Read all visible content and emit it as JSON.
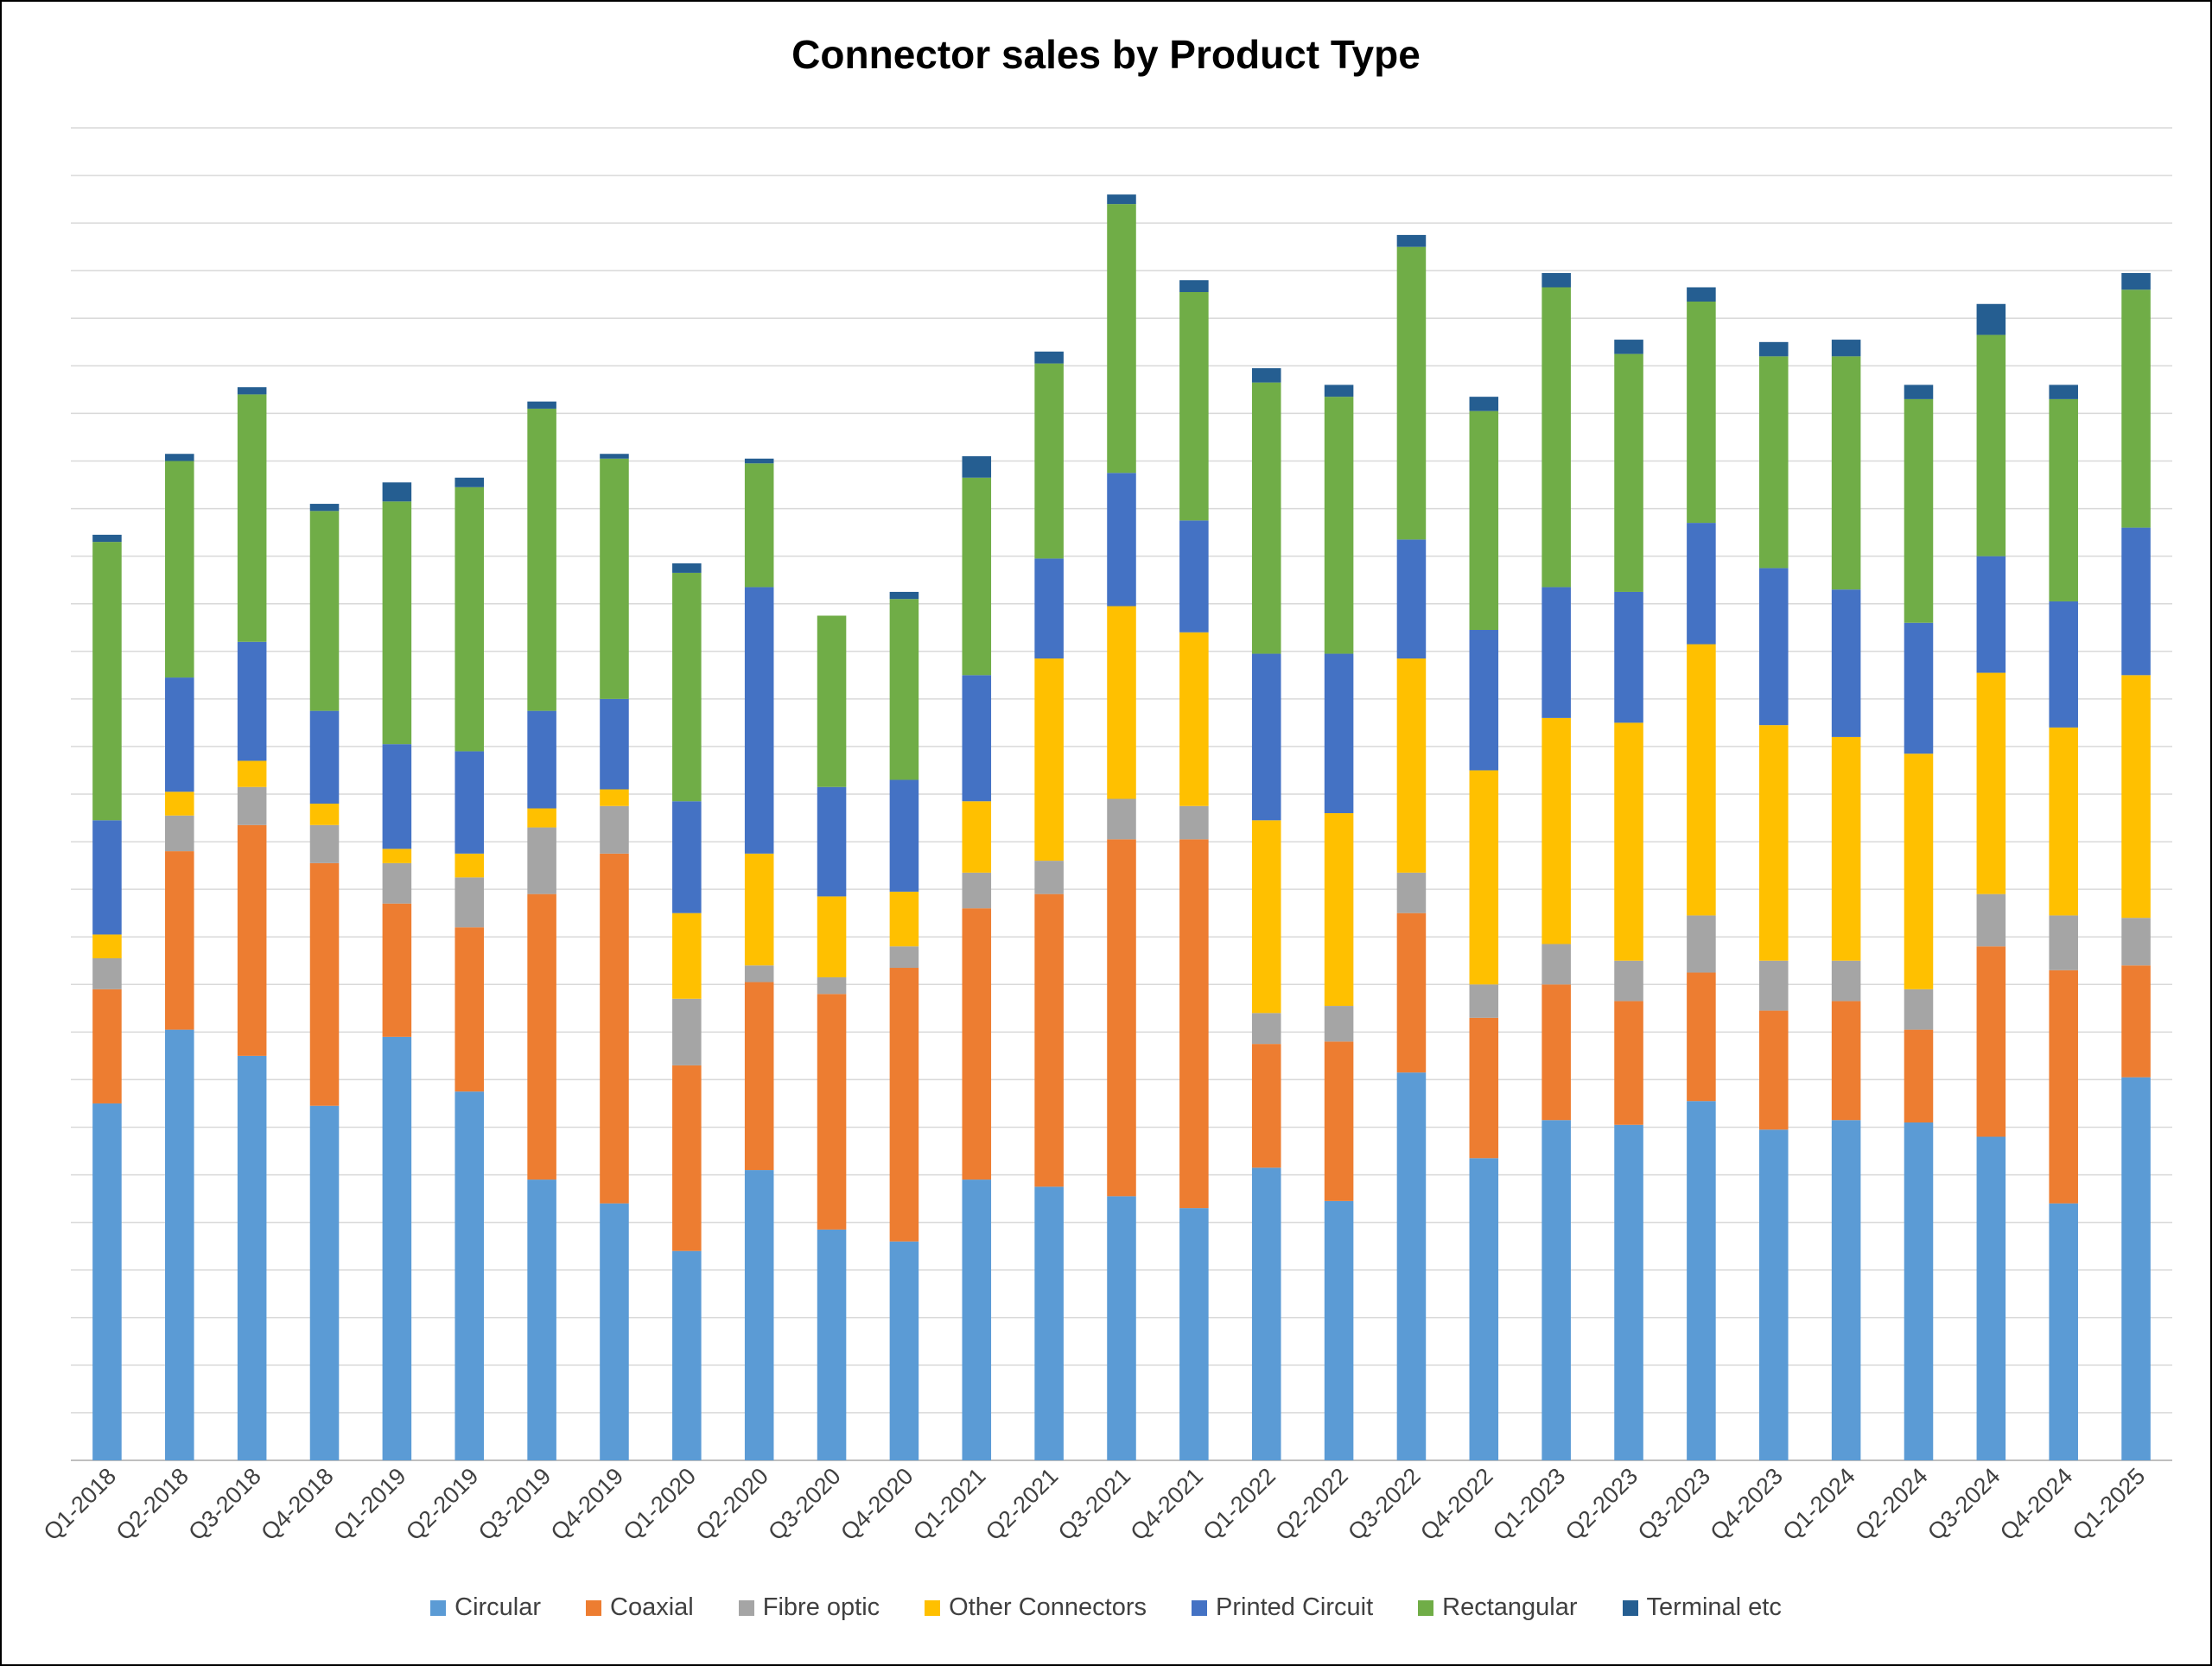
{
  "chart_data": {
    "type": "bar",
    "stacked": true,
    "title": "Connector sales by Product Type",
    "xlabel": "",
    "ylabel": "",
    "ylim": [
      0,
      28
    ],
    "grid": true,
    "legend_position": "bottom",
    "categories": [
      "Q1-2018",
      "Q2-2018",
      "Q3-2018",
      "Q4-2018",
      "Q1-2019",
      "Q2-2019",
      "Q3-2019",
      "Q4-2019",
      "Q1-2020",
      "Q2-2020",
      "Q3-2020",
      "Q4-2020",
      "Q1-2021",
      "Q2-2021",
      "Q3-2021",
      "Q4-2021",
      "Q1-2022",
      "Q2-2022",
      "Q3-2022",
      "Q4-2022",
      "Q1-2023",
      "Q2-2023",
      "Q3-2023",
      "Q4-2023",
      "Q1-2024",
      "Q2-2024",
      "Q3-2024",
      "Q4-2024",
      "Q1-2025"
    ],
    "series": [
      {
        "name": "Circular",
        "color": "#5B9BD5",
        "values": [
          7.5,
          9.05,
          8.5,
          7.45,
          8.9,
          7.75,
          5.9,
          5.4,
          4.4,
          6.1,
          4.85,
          4.6,
          5.9,
          5.75,
          5.55,
          5.3,
          6.15,
          5.45,
          8.15,
          6.35,
          7.15,
          7.05,
          7.55,
          6.95,
          7.15,
          7.1,
          6.8,
          5.4,
          8.05
        ]
      },
      {
        "name": "Coaxial",
        "color": "#ED7D31",
        "values": [
          2.4,
          3.75,
          4.85,
          5.1,
          2.8,
          3.45,
          6.0,
          7.35,
          3.9,
          3.95,
          4.95,
          5.75,
          5.7,
          6.15,
          7.5,
          7.75,
          2.6,
          3.35,
          3.35,
          2.95,
          2.85,
          2.6,
          2.7,
          2.5,
          2.5,
          1.95,
          4.0,
          4.9,
          2.35
        ]
      },
      {
        "name": "Fibre optic",
        "color": "#A5A5A5",
        "values": [
          0.65,
          0.75,
          0.8,
          0.8,
          0.85,
          1.05,
          1.4,
          1.0,
          1.4,
          0.35,
          0.35,
          0.45,
          0.75,
          0.7,
          0.85,
          0.7,
          0.65,
          0.75,
          0.85,
          0.7,
          0.85,
          0.85,
          1.2,
          1.05,
          0.85,
          0.85,
          1.1,
          1.15,
          1.0
        ]
      },
      {
        "name": "Other Connectors",
        "color": "#FFC000",
        "values": [
          0.5,
          0.5,
          0.55,
          0.45,
          0.3,
          0.5,
          0.4,
          0.35,
          1.8,
          2.35,
          1.7,
          1.15,
          1.5,
          4.25,
          4.05,
          3.65,
          4.05,
          4.05,
          4.5,
          4.5,
          4.75,
          5.0,
          5.7,
          4.95,
          4.7,
          4.95,
          4.65,
          3.95,
          5.1
        ]
      },
      {
        "name": "Printed Circuit",
        "color": "#4472C4",
        "values": [
          2.4,
          2.4,
          2.5,
          1.95,
          2.2,
          2.15,
          2.05,
          1.9,
          2.35,
          5.6,
          2.3,
          2.35,
          2.65,
          2.1,
          2.8,
          2.35,
          3.5,
          3.35,
          2.5,
          2.95,
          2.75,
          2.75,
          2.55,
          3.3,
          3.1,
          2.75,
          2.45,
          2.65,
          3.1
        ]
      },
      {
        "name": "Rectangular",
        "color": "#70AD47",
        "values": [
          5.85,
          4.55,
          5.2,
          4.2,
          5.1,
          5.55,
          6.35,
          5.05,
          4.8,
          2.6,
          3.6,
          3.8,
          4.15,
          4.1,
          5.65,
          4.8,
          5.7,
          5.4,
          6.15,
          4.6,
          6.3,
          5.0,
          4.65,
          4.45,
          4.9,
          4.7,
          4.65,
          4.25,
          5.0
        ]
      },
      {
        "name": "Terminal etc",
        "color": "#255E91",
        "values": [
          0.15,
          0.15,
          0.15,
          0.15,
          0.4,
          0.2,
          0.15,
          0.1,
          0.2,
          0.1,
          0.0,
          0.15,
          0.45,
          0.25,
          0.2,
          0.25,
          0.3,
          0.25,
          0.25,
          0.3,
          0.3,
          0.3,
          0.3,
          0.3,
          0.35,
          0.3,
          0.65,
          0.3,
          0.35
        ]
      }
    ]
  }
}
